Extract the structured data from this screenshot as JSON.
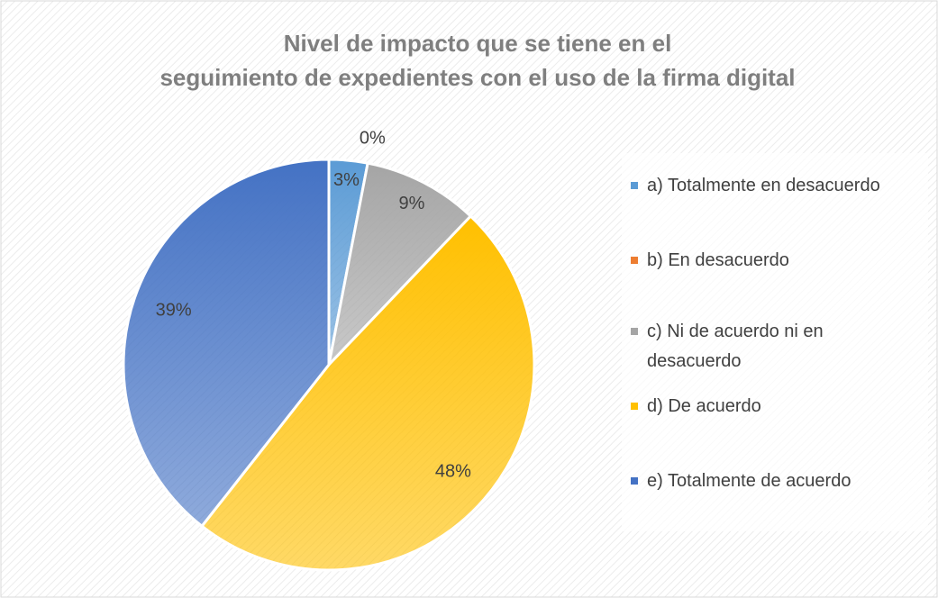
{
  "chart_data": {
    "type": "pie",
    "title": "Nivel de impacto que se tiene en el seguimiento de expedientes con el uso de la firma digital",
    "categories": [
      "a) Totalmente en desacuerdo",
      "b) En desacuerdo",
      "c) Ni de acuerdo ni en desacuerdo",
      "d) De acuerdo",
      "e) Totalmente de acuerdo"
    ],
    "values": [
      3,
      0,
      9,
      48,
      39
    ],
    "value_labels": [
      "3%",
      "0%",
      "9%",
      "48%",
      "39%"
    ],
    "colors": [
      "#5b9bd5",
      "#ed7d31",
      "#a5a5a5",
      "#ffc000",
      "#4472c4"
    ],
    "legend": "right"
  }
}
